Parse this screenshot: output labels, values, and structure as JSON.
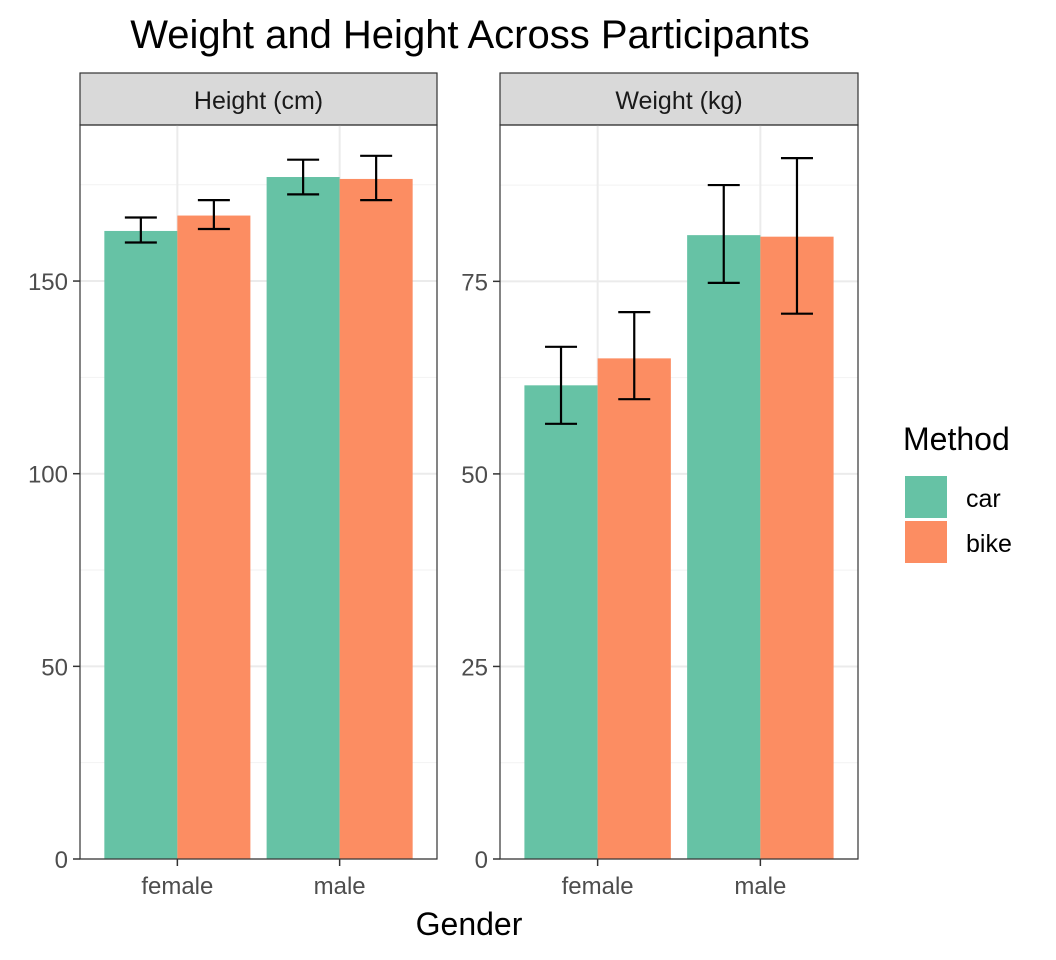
{
  "chart_data": {
    "type": "bar",
    "title": "Weight and Height Across Participants",
    "xlabel": "Gender",
    "categories": [
      "female",
      "male"
    ],
    "legend": {
      "title": "Method",
      "position": "right"
    },
    "series_colors": {
      "car": "#66c2a5",
      "bike": "#fc8d62"
    },
    "grid": true,
    "panels": [
      {
        "strip": "Height (cm)",
        "ylim": [
          0,
          190.5
        ],
        "yticks": [
          0,
          50,
          100,
          150
        ],
        "ytick_labels": [
          "0",
          "50",
          "100",
          "150"
        ],
        "series": [
          {
            "name": "car",
            "values": [
              163,
              177
            ],
            "err_low": [
              160,
              172.5
            ],
            "err_high": [
              166.5,
              181.5
            ]
          },
          {
            "name": "bike",
            "values": [
              167,
              176.5
            ],
            "err_low": [
              163.5,
              171
            ],
            "err_high": [
              171,
              182.5
            ]
          }
        ]
      },
      {
        "strip": "Weight (kg)",
        "ylim": [
          0,
          95.3
        ],
        "yticks": [
          0,
          25,
          50,
          75
        ],
        "ytick_labels": [
          "0",
          "25",
          "50",
          "75"
        ],
        "series": [
          {
            "name": "car",
            "values": [
              61.5,
              81
            ],
            "err_low": [
              56.5,
              74.8
            ],
            "err_high": [
              66.5,
              87.5
            ]
          },
          {
            "name": "bike",
            "values": [
              65,
              80.8
            ],
            "err_low": [
              59.7,
              70.8
            ],
            "err_high": [
              71,
              91
            ]
          }
        ]
      }
    ]
  }
}
